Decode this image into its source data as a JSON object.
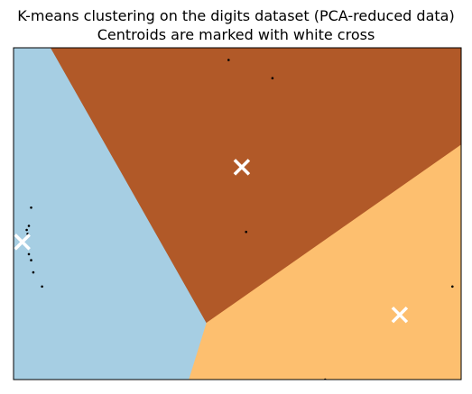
{
  "chart_data": {
    "type": "scatter",
    "title": "K-means clustering on the digits dataset (PCA-reduced data)",
    "subtitle": "Centroids are marked with white cross",
    "xlabel": "",
    "ylabel": "",
    "xlim": [
      -0.2,
      10.0
    ],
    "ylim": [
      -8.0,
      0.2
    ],
    "axes_ticks": "none",
    "grid": false,
    "regions": [
      {
        "cluster": 0,
        "color": "#a6cee3",
        "polygon": [
          [
            -0.2,
            0.2
          ],
          [
            0.65,
            0.2
          ],
          [
            4.2,
            -6.6
          ],
          [
            3.8,
            -8.0
          ],
          [
            -0.2,
            -8.0
          ]
        ]
      },
      {
        "cluster": 1,
        "color": "#b15928",
        "polygon": [
          [
            0.65,
            0.2
          ],
          [
            10.0,
            0.2
          ],
          [
            10.0,
            -2.2
          ],
          [
            4.2,
            -6.6
          ]
        ]
      },
      {
        "cluster": 2,
        "color": "#fdbf6f",
        "polygon": [
          [
            10.0,
            -2.2
          ],
          [
            10.0,
            -8.0
          ],
          [
            3.8,
            -8.0
          ],
          [
            4.2,
            -6.6
          ]
        ]
      }
    ],
    "centroids": [
      {
        "x": 0.0,
        "y": -4.6
      },
      {
        "x": 5.0,
        "y": -2.75
      },
      {
        "x": 8.6,
        "y": -6.4
      }
    ],
    "points": [
      {
        "x": 4.7,
        "y": -0.1
      },
      {
        "x": 5.7,
        "y": -0.55
      },
      {
        "x": 0.2,
        "y": -3.75
      },
      {
        "x": 0.15,
        "y": -4.2
      },
      {
        "x": 0.1,
        "y": -4.3
      },
      {
        "x": 0.12,
        "y": -4.4
      },
      {
        "x": 0.15,
        "y": -4.9
      },
      {
        "x": 0.2,
        "y": -5.05
      },
      {
        "x": 0.25,
        "y": -5.35
      },
      {
        "x": 0.45,
        "y": -5.7
      },
      {
        "x": 5.1,
        "y": -4.35
      },
      {
        "x": 9.8,
        "y": -5.7
      },
      {
        "x": 6.9,
        "y": -8.0
      }
    ],
    "colors": {
      "centroid": "#ffffff",
      "point": "#000000",
      "frame": "#000000"
    }
  }
}
